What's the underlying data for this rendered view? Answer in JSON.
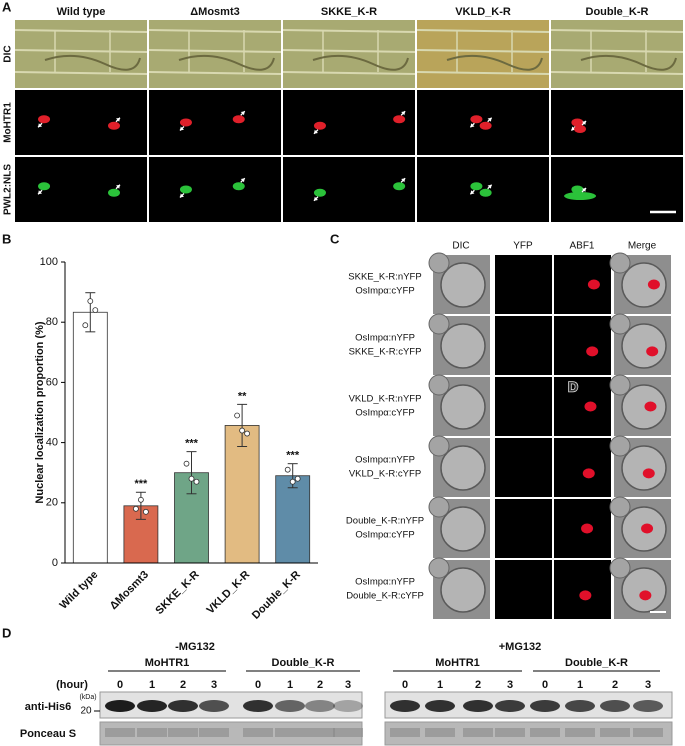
{
  "panel_a": {
    "label": "A",
    "columns": [
      "Wild type",
      "ΔMosmt3",
      "SKKE_K-R",
      "VKLD_K-R",
      "Double_K-R"
    ],
    "rows": [
      "DIC",
      "MoHTR1",
      "PWL2:NLS"
    ]
  },
  "chart_data": {
    "type": "bar",
    "panel_label": "B",
    "ylabel": "Nuclear localization proportion (%)",
    "categories": [
      "Wild type",
      "ΔMosmt3",
      "SKKE_K-R",
      "VKLD_K-R",
      "Double_K-R"
    ],
    "values": [
      83.3,
      19,
      30,
      45.7,
      29
    ],
    "errors": [
      6.5,
      4.5,
      7,
      7,
      4
    ],
    "points": [
      [
        79,
        87,
        84
      ],
      [
        18,
        21,
        17
      ],
      [
        33,
        28,
        27
      ],
      [
        49,
        44,
        43
      ],
      [
        31,
        27,
        28
      ]
    ],
    "colors": [
      "#ffffff",
      "#d9694f",
      "#6fa587",
      "#e2bb82",
      "#5f8ca8"
    ],
    "significance": [
      null,
      "***",
      "***",
      "**",
      "***"
    ],
    "ylim": [
      0,
      100
    ],
    "yticks": [
      0,
      20,
      40,
      60,
      80,
      100
    ]
  },
  "panel_c": {
    "label": "C",
    "columns": [
      "DIC",
      "YFP",
      "ABF1",
      "Merge"
    ],
    "rows": [
      [
        "SKKE_K-R:nYFP",
        "OsImpα:cYFP"
      ],
      [
        "OsImpα:nYFP",
        "SKKE_K-R:cYFP"
      ],
      [
        "VKLD_K-R:nYFP",
        "OsImpα:cYFP"
      ],
      [
        "OsImpα:nYFP",
        "VKLD_K-R:cYFP"
      ],
      [
        "Double_K-R:nYFP",
        "OsImpα:cYFP"
      ],
      [
        "OsImpα:nYFP",
        "Double_K-R:cYFP"
      ]
    ],
    "stray_label": "D"
  },
  "panel_d": {
    "label": "D",
    "conditions": [
      "-MG132",
      "+MG132"
    ],
    "groups": [
      "MoHTR1",
      "Double_K-R",
      "MoHTR1",
      "Double_K-R"
    ],
    "hour_label": "(hour)",
    "hours": [
      0,
      1,
      2,
      3
    ],
    "rows": [
      "anti-His6",
      "Ponceau S"
    ],
    "kda_label": "(kDa)",
    "marker": 20
  }
}
